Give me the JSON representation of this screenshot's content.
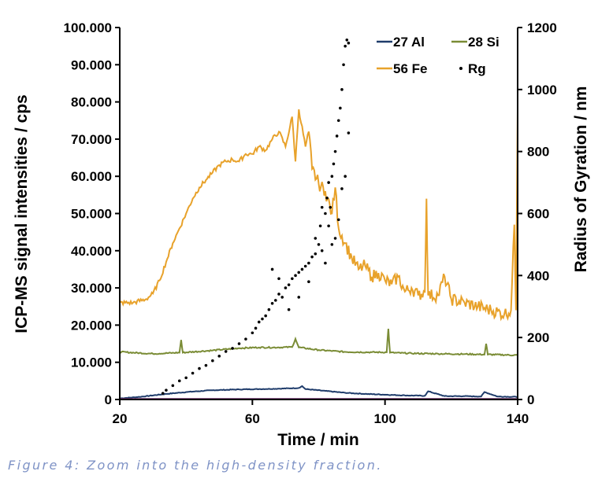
{
  "chart_data": {
    "type": "line",
    "xlabel": "Time / min",
    "ylabel": "ICP-MS signal intensities / cps",
    "y2label": "Radius of Gyration / nm",
    "xlim": [
      20,
      140
    ],
    "ylim": [
      0,
      100000
    ],
    "y2lim": [
      0,
      1200
    ],
    "xticks": [
      "20",
      "60",
      "100",
      "140"
    ],
    "xtick_values": [
      20,
      60,
      100,
      140
    ],
    "yticks": [
      "0",
      "10.000",
      "20.000",
      "30.000",
      "40.000",
      "50.000",
      "60.000",
      "70.000",
      "80.000",
      "90.000",
      "100.000"
    ],
    "ytick_values": [
      0,
      10000,
      20000,
      30000,
      40000,
      50000,
      60000,
      70000,
      80000,
      90000,
      100000
    ],
    "y2ticks": [
      "0",
      "200",
      "400",
      "600",
      "800",
      "1000",
      "1200"
    ],
    "y2tick_values": [
      0,
      200,
      400,
      600,
      800,
      1000,
      1200
    ],
    "legend_position": "top-right",
    "series": [
      {
        "name": "27 Al",
        "color": "#1f3c6b",
        "axis": "left",
        "x": [
          20,
          26,
          34,
          40,
          48,
          56,
          62,
          68,
          74,
          75,
          76,
          82,
          88,
          94,
          100,
          106,
          112,
          113,
          118,
          124,
          129,
          130,
          134,
          140
        ],
        "y": [
          300,
          700,
          1500,
          2000,
          2500,
          2700,
          2800,
          2900,
          3100,
          3600,
          2800,
          2300,
          1800,
          1500,
          1300,
          1100,
          1000,
          2200,
          900,
          900,
          800,
          2000,
          800,
          700
        ]
      },
      {
        "name": "28 Si",
        "color": "#7a8c35",
        "axis": "left",
        "x": [
          20,
          30,
          38,
          38.5,
          39,
          48,
          56,
          62,
          68,
          72,
          73,
          74,
          80,
          88,
          96,
          100.5,
          101,
          101.5,
          108,
          116,
          124,
          130,
          130.5,
          131,
          140
        ],
        "y": [
          12800,
          12300,
          12600,
          16000,
          12600,
          13200,
          13800,
          14000,
          14000,
          14100,
          16300,
          14000,
          13300,
          12800,
          12700,
          12700,
          19000,
          12600,
          12400,
          12300,
          12200,
          12100,
          15000,
          12100,
          11900
        ]
      },
      {
        "name": "56 Fe",
        "color": "#e8a22b",
        "axis": "left",
        "x": [
          20,
          24,
          28,
          30,
          32,
          34,
          36,
          38,
          40,
          42,
          44,
          46,
          48,
          50,
          52,
          54,
          56,
          58,
          60,
          62,
          64,
          66,
          68,
          70,
          72,
          73,
          74,
          76,
          77,
          78,
          80,
          82,
          84,
          85,
          86,
          88,
          90,
          92,
          94,
          96,
          98,
          100,
          102,
          104,
          106,
          108,
          110,
          112,
          112.5,
          113,
          116,
          118,
          120,
          124,
          128,
          132,
          136,
          138,
          139,
          139.5,
          140
        ],
        "y": [
          26000,
          26000,
          27000,
          28500,
          32000,
          37000,
          42000,
          46000,
          50000,
          54000,
          57000,
          59000,
          61000,
          63000,
          64000,
          64500,
          64000,
          66000,
          66000,
          68000,
          67000,
          70000,
          72000,
          68000,
          76000,
          64000,
          78000,
          68000,
          72000,
          62000,
          58000,
          56000,
          50000,
          57000,
          46000,
          42000,
          38000,
          35000,
          36000,
          33000,
          34000,
          32000,
          31000,
          33000,
          29000,
          30000,
          28000,
          29000,
          54000,
          28000,
          28000,
          33000,
          27000,
          26000,
          25000,
          24000,
          23000,
          24000,
          47000,
          24000,
          78000
        ]
      }
    ],
    "scatter": {
      "name": "Rg",
      "color": "#000000",
      "axis": "right",
      "x": [
        33,
        34,
        36,
        38,
        40,
        42,
        44,
        46,
        48,
        50,
        52,
        54,
        56,
        58,
        60,
        61,
        62,
        63,
        64,
        65,
        66,
        67,
        68,
        69,
        70,
        71,
        72,
        73,
        74,
        75,
        76,
        77,
        78,
        79,
        80,
        80.5,
        81,
        82,
        82.5,
        83,
        83.5,
        84,
        84.5,
        85,
        85.5,
        86,
        86.5,
        87,
        87.5,
        88,
        88.5,
        89,
        86,
        85,
        84,
        87,
        88,
        89,
        83,
        82,
        81,
        79,
        77,
        74,
        71,
        68,
        66
      ],
      "y": [
        20,
        30,
        45,
        60,
        70,
        85,
        100,
        110,
        125,
        140,
        155,
        165,
        180,
        195,
        215,
        230,
        250,
        260,
        270,
        290,
        310,
        320,
        340,
        330,
        360,
        370,
        390,
        400,
        410,
        420,
        430,
        440,
        460,
        470,
        500,
        560,
        620,
        600,
        650,
        700,
        620,
        720,
        760,
        800,
        850,
        900,
        940,
        1000,
        1080,
        1140,
        1160,
        1150,
        580,
        520,
        500,
        680,
        720,
        860,
        560,
        440,
        480,
        520,
        380,
        330,
        290,
        390,
        420
      ]
    },
    "caption": "Figure 4: Zoom into the high-density fraction."
  }
}
